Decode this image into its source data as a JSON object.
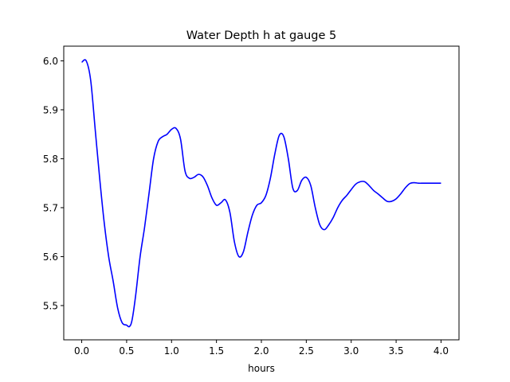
{
  "chart_data": {
    "type": "line",
    "title": "Water Depth h at gauge 5",
    "xlabel": "hours",
    "ylabel": "",
    "xlim": [
      -0.2,
      4.2
    ],
    "ylim": [
      5.43,
      6.03
    ],
    "xticks": [
      0.0,
      0.5,
      1.0,
      1.5,
      2.0,
      2.5,
      3.0,
      3.5,
      4.0
    ],
    "xtick_labels": [
      "0.0",
      "0.5",
      "1.0",
      "1.5",
      "2.0",
      "2.5",
      "3.0",
      "3.5",
      "4.0"
    ],
    "yticks": [
      5.5,
      5.6,
      5.7,
      5.8,
      5.9,
      6.0
    ],
    "ytick_labels": [
      "5.5",
      "5.6",
      "5.7",
      "5.8",
      "5.9",
      "6.0"
    ],
    "grid": false,
    "legend": "none",
    "series": [
      {
        "color": "#0000ff",
        "x": [
          0.0,
          0.05,
          0.1,
          0.15,
          0.2,
          0.25,
          0.3,
          0.35,
          0.4,
          0.45,
          0.5,
          0.53,
          0.56,
          0.6,
          0.65,
          0.7,
          0.75,
          0.8,
          0.85,
          0.9,
          0.95,
          1.0,
          1.05,
          1.1,
          1.15,
          1.2,
          1.25,
          1.3,
          1.35,
          1.4,
          1.45,
          1.5,
          1.55,
          1.6,
          1.65,
          1.7,
          1.75,
          1.8,
          1.85,
          1.9,
          1.95,
          2.0,
          2.05,
          2.1,
          2.15,
          2.2,
          2.25,
          2.3,
          2.35,
          2.4,
          2.45,
          2.5,
          2.55,
          2.6,
          2.65,
          2.7,
          2.75,
          2.8,
          2.85,
          2.9,
          2.95,
          3.0,
          3.05,
          3.1,
          3.15,
          3.2,
          3.25,
          3.3,
          3.35,
          3.4,
          3.45,
          3.5,
          3.55,
          3.6,
          3.65,
          3.7,
          3.75,
          3.8,
          3.85,
          3.9,
          3.95,
          4.0
        ],
        "y": [
          5.997,
          6.0,
          5.96,
          5.86,
          5.76,
          5.67,
          5.6,
          5.55,
          5.495,
          5.465,
          5.46,
          5.457,
          5.47,
          5.52,
          5.6,
          5.66,
          5.73,
          5.8,
          5.835,
          5.845,
          5.85,
          5.86,
          5.862,
          5.84,
          5.775,
          5.76,
          5.762,
          5.768,
          5.763,
          5.745,
          5.72,
          5.705,
          5.71,
          5.716,
          5.69,
          5.63,
          5.6,
          5.61,
          5.65,
          5.685,
          5.705,
          5.71,
          5.725,
          5.76,
          5.81,
          5.848,
          5.845,
          5.8,
          5.74,
          5.735,
          5.756,
          5.762,
          5.745,
          5.7,
          5.665,
          5.655,
          5.665,
          5.68,
          5.7,
          5.715,
          5.725,
          5.737,
          5.748,
          5.753,
          5.753,
          5.745,
          5.735,
          5.728,
          5.72,
          5.713,
          5.713,
          5.718,
          5.728,
          5.74,
          5.749,
          5.751,
          5.75,
          5.75,
          5.75,
          5.75,
          5.75,
          5.75
        ]
      }
    ]
  }
}
